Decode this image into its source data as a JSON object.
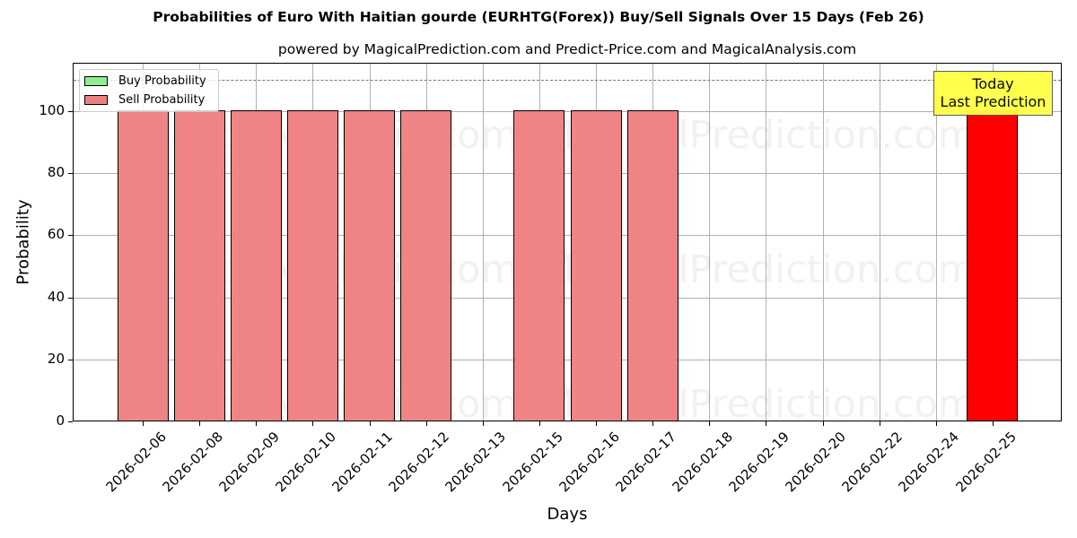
{
  "chart_data": {
    "type": "bar",
    "title": "Probabilities of Euro With Haitian gourde (EURHTG(Forex)) Buy/Sell Signals Over 15 Days (Feb 26)",
    "subtitle": "powered by MagicalPrediction.com and Predict-Price.com and MagicalAnalysis.com",
    "xlabel": "Days",
    "ylabel": "Probability",
    "ylim": [
      0,
      115
    ],
    "yticks": [
      "0",
      "20",
      "40",
      "60",
      "80",
      "100"
    ],
    "grid": true,
    "reference_line": 110,
    "legend_position": "upper left",
    "categories": [
      "2026-02-06",
      "2026-02-08",
      "2026-02-09",
      "2026-02-10",
      "2026-02-11",
      "2026-02-12",
      "2026-02-13",
      "2026-02-15",
      "2026-02-16",
      "2026-02-17",
      "2026-02-18",
      "2026-02-19",
      "2026-02-20",
      "2026-02-22",
      "2026-02-24",
      "2026-02-25"
    ],
    "series": [
      {
        "name": "Buy Probability",
        "color": "#90ee90",
        "values": [
          0,
          0,
          0,
          0,
          0,
          0,
          0,
          0,
          0,
          0,
          0,
          0,
          0,
          0,
          0,
          0
        ]
      },
      {
        "name": "Sell Probability",
        "color": "#f08080",
        "values": [
          100,
          100,
          100,
          100,
          100,
          100,
          0,
          100,
          100,
          100,
          0,
          0,
          0,
          0,
          0,
          100
        ]
      }
    ],
    "highlight": {
      "category": "2026-02-25",
      "color": "#ff0000",
      "annotation": [
        "Today",
        "Last Prediction"
      ]
    }
  },
  "watermarks": [
    "MagicalAnalysis.com",
    "MagicalPrediction.com"
  ],
  "legend": {
    "buy": "Buy Probability",
    "sell": "Sell Probability"
  },
  "annotation": {
    "line1": "Today",
    "line2": "Last Prediction"
  }
}
